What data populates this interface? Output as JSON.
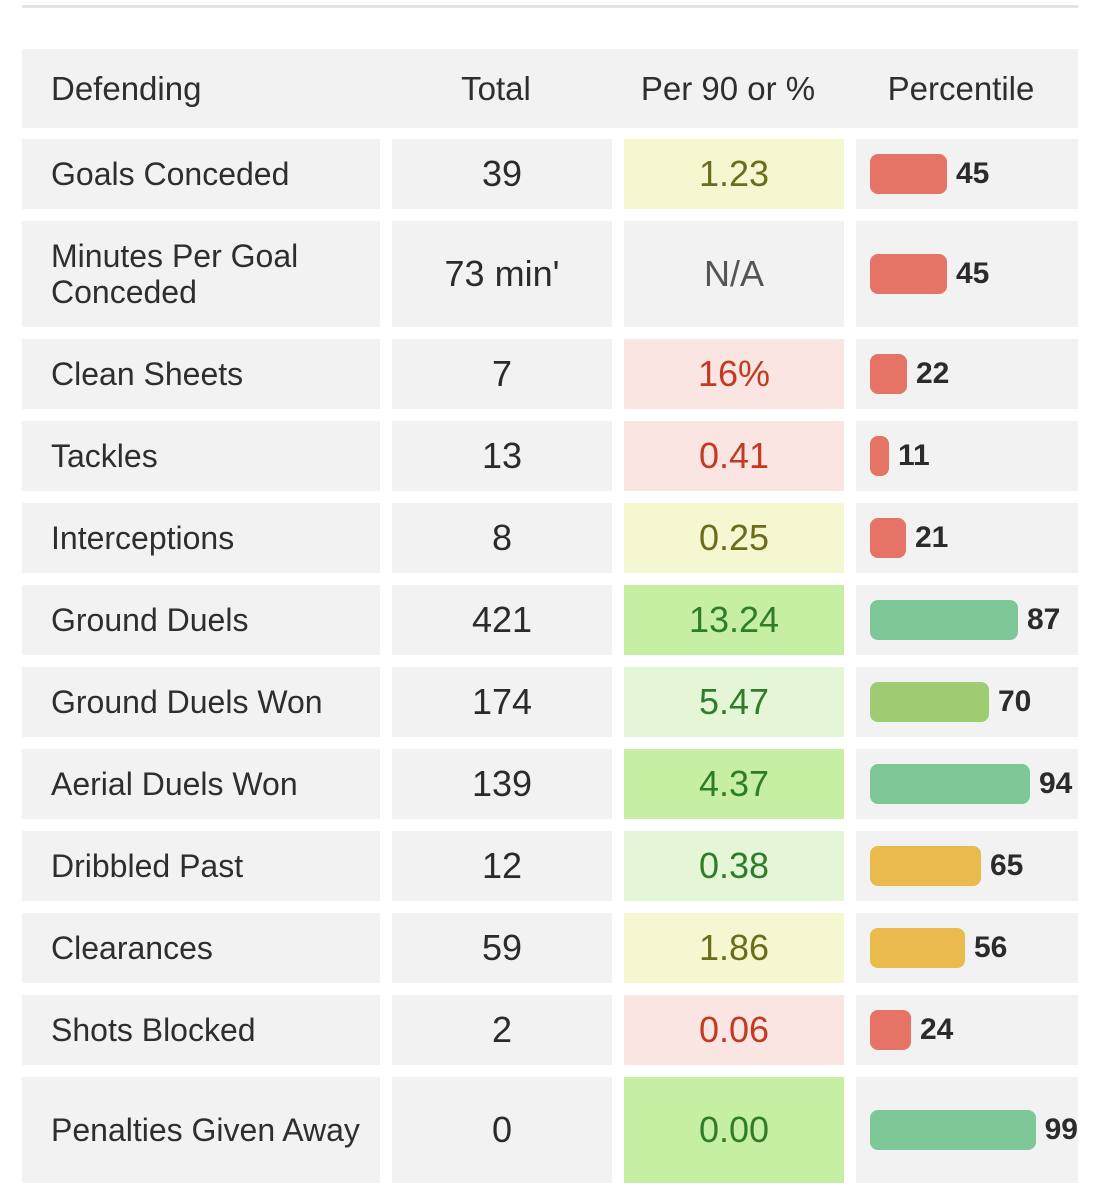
{
  "table": {
    "headers": [
      "Defending",
      "Total",
      "Per 90 or %",
      "Percentile"
    ],
    "rows": [
      {
        "name": "Goals Conceded",
        "total": "39",
        "per90": "1.23",
        "tone": "yellow",
        "percentile": 45,
        "bar": "red"
      },
      {
        "name": "Minutes Per Goal Conceded",
        "total": "73 min'",
        "per90": "N/A",
        "tone": "na",
        "percentile": 45,
        "bar": "red"
      },
      {
        "name": "Clean Sheets",
        "total": "7",
        "per90": "16%",
        "tone": "red",
        "percentile": 22,
        "bar": "red"
      },
      {
        "name": "Tackles",
        "total": "13",
        "per90": "0.41",
        "tone": "red",
        "percentile": 11,
        "bar": "red"
      },
      {
        "name": "Interceptions",
        "total": "8",
        "per90": "0.25",
        "tone": "yellow",
        "percentile": 21,
        "bar": "red"
      },
      {
        "name": "Ground Duels",
        "total": "421",
        "per90": "13.24",
        "tone": "green",
        "percentile": 87,
        "bar": "green"
      },
      {
        "name": "Ground Duels Won",
        "total": "174",
        "per90": "5.47",
        "tone": "lightgreen",
        "percentile": 70,
        "bar": "olive"
      },
      {
        "name": "Aerial Duels Won",
        "total": "139",
        "per90": "4.37",
        "tone": "green",
        "percentile": 94,
        "bar": "green"
      },
      {
        "name": "Dribbled Past",
        "total": "12",
        "per90": "0.38",
        "tone": "lightgreen",
        "percentile": 65,
        "bar": "amber"
      },
      {
        "name": "Clearances",
        "total": "59",
        "per90": "1.86",
        "tone": "yellow",
        "percentile": 56,
        "bar": "amber"
      },
      {
        "name": "Shots Blocked",
        "total": "2",
        "per90": "0.06",
        "tone": "red",
        "percentile": 24,
        "bar": "red"
      },
      {
        "name": "Penalties Given Away",
        "total": "0",
        "per90": "0.00",
        "tone": "green",
        "percentile": 99,
        "bar": "green"
      }
    ]
  },
  "colors": {
    "tones": {
      "yellow": {
        "bg": "#f5f7d0",
        "fg": "#6b6d1a"
      },
      "red": {
        "bg": "#fbe5e3",
        "fg": "#c23a22"
      },
      "green": {
        "bg": "#c7efa3",
        "fg": "#2f7d2a"
      },
      "lightgreen": {
        "bg": "#e5f6d6",
        "fg": "#2f7d2a"
      },
      "na": {
        "bg": "#f2f2f3",
        "fg": "#555555"
      }
    },
    "bars": {
      "red": "#e57366",
      "green": "#7ec897",
      "olive": "#9fcb72",
      "amber": "#e8bb4c"
    }
  }
}
